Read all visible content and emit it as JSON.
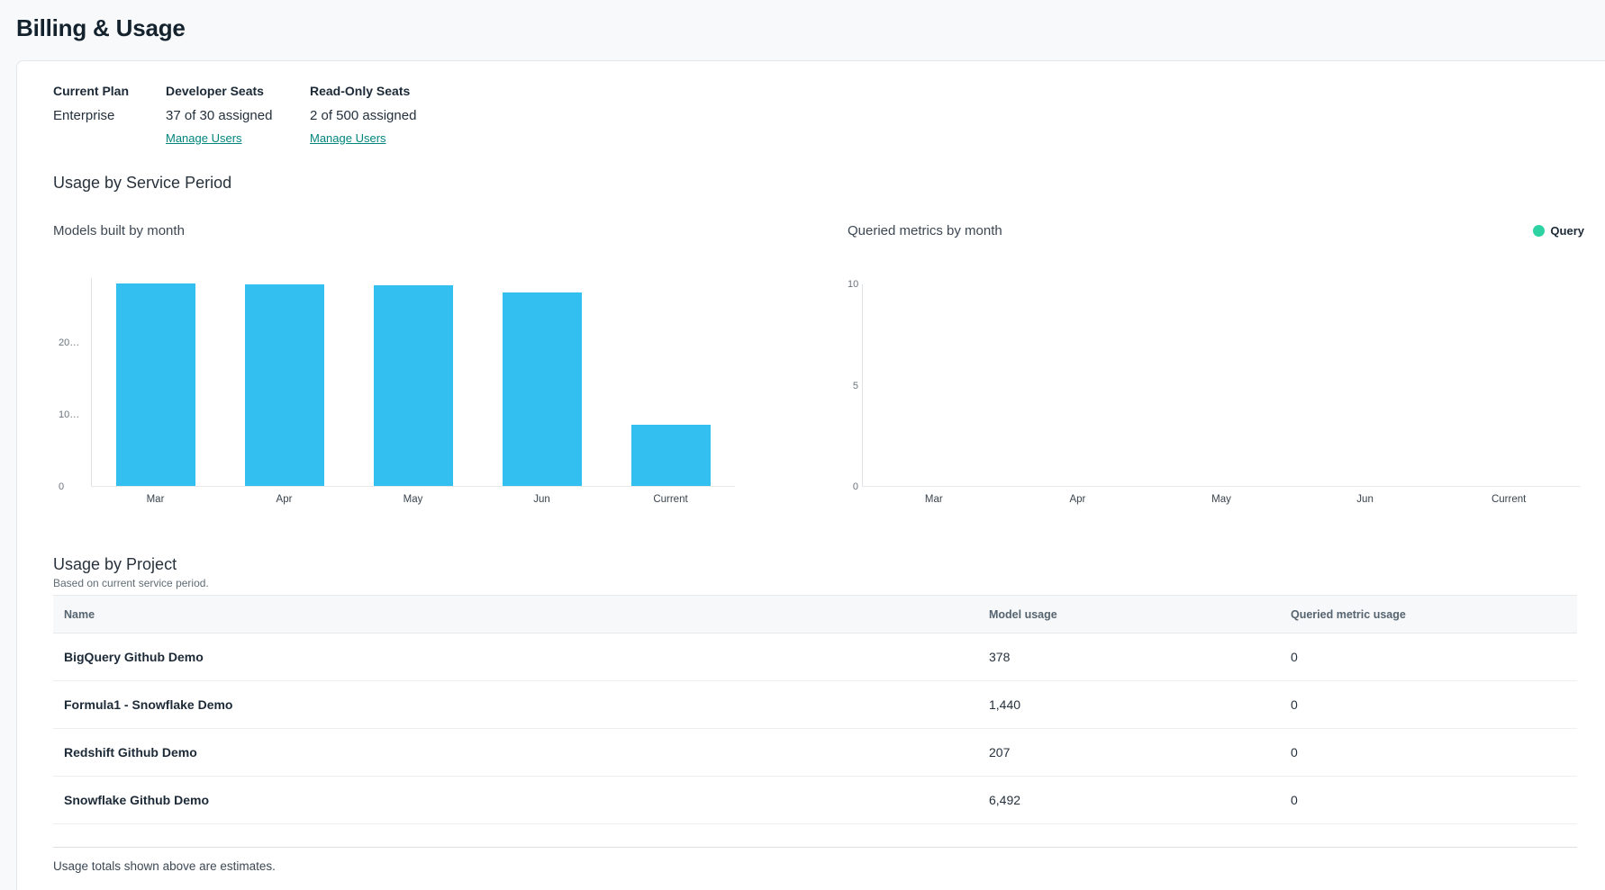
{
  "page": {
    "title": "Billing & Usage"
  },
  "plan": {
    "current_plan": {
      "label": "Current Plan",
      "value": "Enterprise"
    },
    "developer_seats": {
      "label": "Developer Seats",
      "value": "37 of 30 assigned",
      "link_label": "Manage Users"
    },
    "readonly_seats": {
      "label": "Read-Only Seats",
      "value": "2 of 500 assigned",
      "link_label": "Manage Users"
    }
  },
  "usage_section": {
    "title": "Usage by Service Period"
  },
  "chart_data": [
    {
      "type": "bar",
      "title": "Models built by month",
      "categories": [
        "Mar",
        "Apr",
        "May",
        "Jun",
        "Current"
      ],
      "values": [
        28100,
        28000,
        27900,
        26900,
        8500
      ],
      "xlabel": "",
      "ylabel": "",
      "ylim": [
        0,
        29000
      ],
      "y_ticks": [
        {
          "value": 0,
          "label": "0"
        },
        {
          "value": 10000,
          "label": "10…"
        },
        {
          "value": 20000,
          "label": "20…"
        }
      ],
      "grid": false,
      "bar_color": "#33bfef",
      "legend": null
    },
    {
      "type": "bar",
      "title": "Queried metrics by month",
      "categories": [
        "Mar",
        "Apr",
        "May",
        "Jun",
        "Current"
      ],
      "values": [
        0,
        0,
        0,
        0,
        0
      ],
      "xlabel": "",
      "ylabel": "",
      "ylim": [
        0,
        10
      ],
      "y_ticks": [
        {
          "value": 0,
          "label": "0"
        },
        {
          "value": 5,
          "label": "5"
        },
        {
          "value": 10,
          "label": "10"
        }
      ],
      "grid": false,
      "bar_color": "#2ed3a3",
      "legend": {
        "label": "Query",
        "color": "#2ed3a3",
        "position": "top-right"
      }
    }
  ],
  "project_section": {
    "title": "Usage by Project",
    "subtitle": "Based on current service period.",
    "table": {
      "columns": [
        "Name",
        "Model usage",
        "Queried metric usage"
      ],
      "rows": [
        {
          "name": "BigQuery Github Demo",
          "model_usage": "378",
          "queried_metric_usage": "0"
        },
        {
          "name": "Formula1 - Snowflake Demo",
          "model_usage": "1,440",
          "queried_metric_usage": "0"
        },
        {
          "name": "Redshift Github Demo",
          "model_usage": "207",
          "queried_metric_usage": "0"
        },
        {
          "name": "Snowflake Github Demo",
          "model_usage": "6,492",
          "queried_metric_usage": "0"
        }
      ]
    },
    "footer_note": "Usage totals shown above are estimates."
  },
  "colors": {
    "link_teal": "#00857c",
    "bar_cyan": "#33bfef",
    "legend_green": "#2ed3a3",
    "page_background": "#f8f9fa",
    "text_dark": "#1c2936"
  }
}
